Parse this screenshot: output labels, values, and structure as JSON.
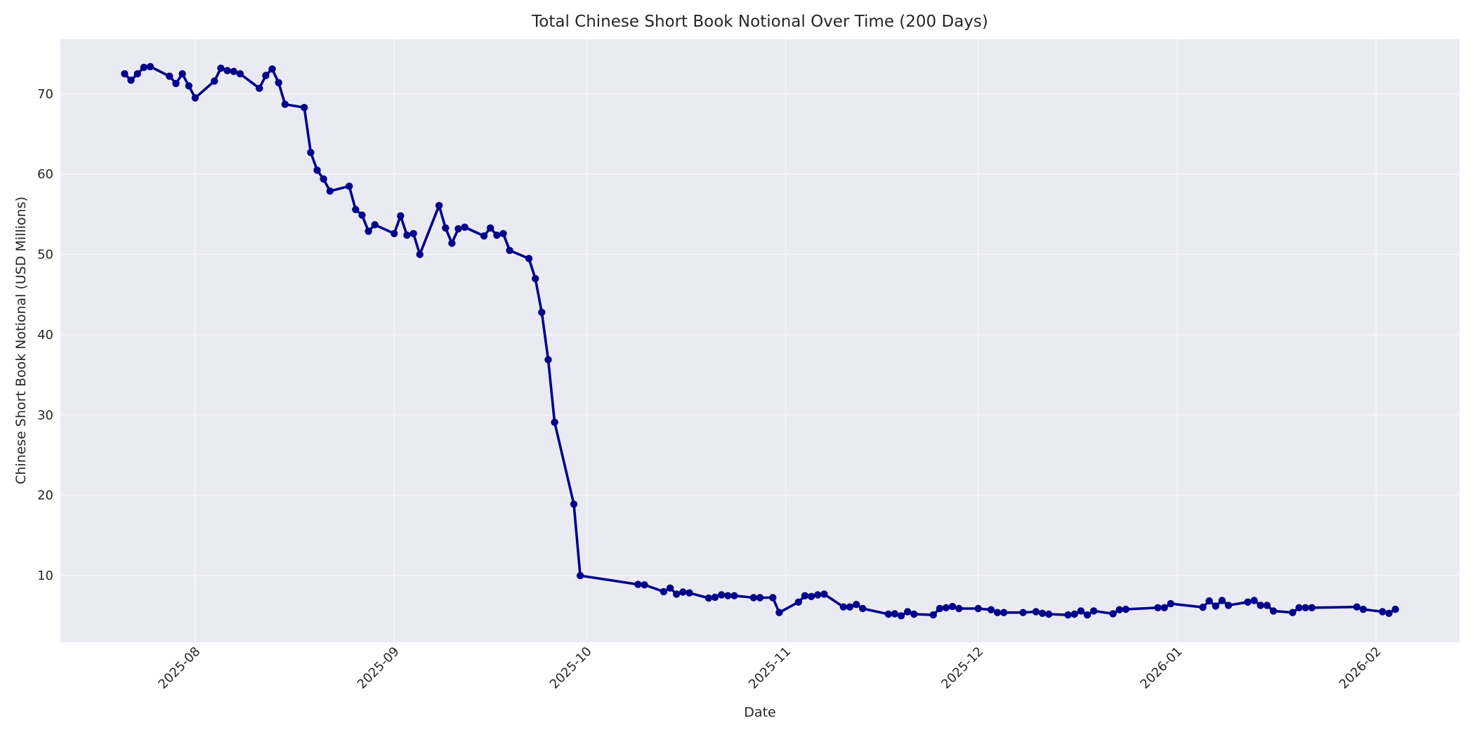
{
  "chart_data": {
    "type": "line",
    "title": "Total Chinese Short Book Notional Over Time (200 Days)",
    "xlabel": "Date",
    "ylabel": "Chinese Short Book Notional (USD Millions)",
    "xlim": [
      "2025-07-11",
      "2026-02-14"
    ],
    "ylim": [
      1.7,
      76.8
    ],
    "yticks": [
      10,
      20,
      30,
      40,
      50,
      60,
      70
    ],
    "xticks": [
      "2025-08",
      "2025-09",
      "2025-10",
      "2025-11",
      "2025-12",
      "2026-01",
      "2026-02"
    ],
    "xtick_dates": [
      "2025-08-01",
      "2025-09-01",
      "2025-10-01",
      "2025-11-01",
      "2025-12-01",
      "2026-01-01",
      "2026-02-01"
    ],
    "grid": true,
    "legend": null,
    "style": {
      "line_color": "#00008B",
      "marker": "circle",
      "plot_background": "#EAEAF2",
      "grid_color": "#F5F5F8"
    },
    "series": [
      {
        "name": "Total Chinese Short Book Notional",
        "x": [
          "2025-07-21",
          "2025-07-22",
          "2025-07-23",
          "2025-07-24",
          "2025-07-25",
          "2025-07-28",
          "2025-07-29",
          "2025-07-30",
          "2025-07-31",
          "2025-08-01",
          "2025-08-04",
          "2025-08-05",
          "2025-08-06",
          "2025-08-07",
          "2025-08-08",
          "2025-08-11",
          "2025-08-12",
          "2025-08-13",
          "2025-08-14",
          "2025-08-15",
          "2025-08-18",
          "2025-08-19",
          "2025-08-20",
          "2025-08-21",
          "2025-08-22",
          "2025-08-25",
          "2025-08-26",
          "2025-08-27",
          "2025-08-28",
          "2025-08-29",
          "2025-09-01",
          "2025-09-02",
          "2025-09-03",
          "2025-09-04",
          "2025-09-05",
          "2025-09-08",
          "2025-09-09",
          "2025-09-10",
          "2025-09-11",
          "2025-09-12",
          "2025-09-15",
          "2025-09-16",
          "2025-09-17",
          "2025-09-18",
          "2025-09-19",
          "2025-09-22",
          "2025-09-23",
          "2025-09-24",
          "2025-09-25",
          "2025-09-26",
          "2025-09-29",
          "2025-09-30",
          "2025-10-09",
          "2025-10-10",
          "2025-10-13",
          "2025-10-14",
          "2025-10-15",
          "2025-10-16",
          "2025-10-17",
          "2025-10-20",
          "2025-10-21",
          "2025-10-22",
          "2025-10-23",
          "2025-10-24",
          "2025-10-27",
          "2025-10-28",
          "2025-10-30",
          "2025-10-31",
          "2025-11-03",
          "2025-11-04",
          "2025-11-05",
          "2025-11-06",
          "2025-11-07",
          "2025-11-10",
          "2025-11-11",
          "2025-11-12",
          "2025-11-13",
          "2025-11-17",
          "2025-11-18",
          "2025-11-19",
          "2025-11-20",
          "2025-11-21",
          "2025-11-24",
          "2025-11-25",
          "2025-11-26",
          "2025-11-27",
          "2025-11-28",
          "2025-12-01",
          "2025-12-03",
          "2025-12-04",
          "2025-12-05",
          "2025-12-08",
          "2025-12-10",
          "2025-12-11",
          "2025-12-12",
          "2025-12-15",
          "2025-12-16",
          "2025-12-17",
          "2025-12-18",
          "2025-12-19",
          "2025-12-22",
          "2025-12-23",
          "2025-12-24",
          "2025-12-29",
          "2025-12-30",
          "2025-12-31",
          "2026-01-05",
          "2026-01-06",
          "2026-01-07",
          "2026-01-08",
          "2026-01-09",
          "2026-01-12",
          "2026-01-13",
          "2026-01-14",
          "2026-01-15",
          "2026-01-16",
          "2026-01-19",
          "2026-01-20",
          "2026-01-21",
          "2026-01-22",
          "2026-01-29",
          "2026-01-30",
          "2026-02-02",
          "2026-02-03",
          "2026-02-04"
        ],
        "values": [
          72.5,
          71.7,
          72.5,
          73.3,
          73.4,
          72.2,
          71.3,
          72.5,
          71.0,
          69.5,
          71.6,
          73.2,
          72.9,
          72.8,
          72.5,
          70.7,
          72.3,
          73.1,
          71.4,
          68.7,
          68.3,
          62.7,
          60.5,
          59.4,
          57.9,
          58.5,
          55.6,
          54.9,
          52.9,
          53.7,
          52.6,
          54.8,
          52.4,
          52.6,
          50.0,
          56.1,
          53.3,
          51.4,
          53.2,
          53.4,
          52.3,
          53.3,
          52.4,
          52.6,
          50.5,
          49.5,
          47.0,
          42.8,
          36.9,
          29.1,
          18.9,
          10.0,
          8.9,
          8.85,
          8.0,
          8.45,
          7.7,
          7.95,
          7.85,
          7.2,
          7.3,
          7.6,
          7.5,
          7.5,
          7.25,
          7.25,
          7.25,
          5.4,
          6.7,
          7.5,
          7.4,
          7.6,
          7.7,
          6.1,
          6.1,
          6.4,
          5.9,
          5.2,
          5.25,
          5.0,
          5.5,
          5.2,
          5.1,
          5.9,
          6.0,
          6.15,
          5.9,
          5.9,
          5.75,
          5.4,
          5.4,
          5.4,
          5.5,
          5.3,
          5.2,
          5.1,
          5.2,
          5.6,
          5.1,
          5.6,
          5.25,
          5.75,
          5.8,
          6.0,
          6.0,
          6.5,
          6.05,
          6.85,
          6.2,
          6.9,
          6.3,
          6.7,
          6.9,
          6.3,
          6.3,
          5.6,
          5.4,
          6.0,
          6.0,
          6.0,
          6.1,
          5.8,
          5.5,
          5.3,
          5.8
        ]
      }
    ]
  }
}
